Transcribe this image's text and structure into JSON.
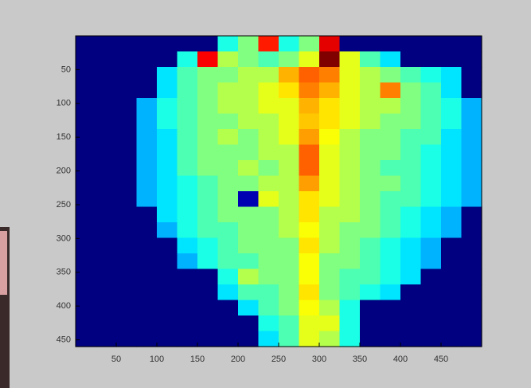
{
  "chart_data": {
    "type": "heatmap",
    "colormap": "jet",
    "clim": [
      0,
      1
    ],
    "xlim": [
      0,
      500
    ],
    "ylim": [
      0,
      460
    ],
    "yreverse": true,
    "xticks": [
      50,
      100,
      150,
      200,
      250,
      300,
      350,
      400,
      450
    ],
    "yticks": [
      50,
      100,
      150,
      200,
      250,
      300,
      350,
      400,
      450
    ],
    "z": [
      [
        0,
        0,
        0,
        0,
        0,
        0,
        0,
        0.4,
        0.5,
        0.85,
        0.4,
        0.5,
        0.9,
        0,
        0,
        0,
        0,
        0,
        0,
        0
      ],
      [
        0,
        0,
        0,
        0,
        0,
        0.4,
        0.88,
        0.55,
        0.5,
        0.45,
        0.5,
        0.6,
        1.0,
        0.6,
        0.45,
        0.35,
        0,
        0,
        0,
        0
      ],
      [
        0,
        0,
        0,
        0,
        0.35,
        0.45,
        0.5,
        0.5,
        0.55,
        0.55,
        0.7,
        0.78,
        0.75,
        0.6,
        0.55,
        0.5,
        0.45,
        0.4,
        0.35,
        0
      ],
      [
        0,
        0,
        0,
        0,
        0.35,
        0.45,
        0.5,
        0.55,
        0.55,
        0.6,
        0.65,
        0.75,
        0.7,
        0.6,
        0.55,
        0.75,
        0.5,
        0.45,
        0.35,
        0
      ],
      [
        0,
        0,
        0,
        0.3,
        0.4,
        0.45,
        0.5,
        0.55,
        0.55,
        0.6,
        0.6,
        0.7,
        0.65,
        0.6,
        0.55,
        0.55,
        0.5,
        0.45,
        0.4,
        0.3
      ],
      [
        0,
        0,
        0,
        0.3,
        0.4,
        0.45,
        0.5,
        0.5,
        0.55,
        0.55,
        0.6,
        0.68,
        0.65,
        0.6,
        0.55,
        0.5,
        0.5,
        0.45,
        0.4,
        0.3
      ],
      [
        0,
        0,
        0,
        0.3,
        0.35,
        0.45,
        0.5,
        0.55,
        0.5,
        0.55,
        0.6,
        0.72,
        0.62,
        0.55,
        0.5,
        0.5,
        0.45,
        0.45,
        0.35,
        0.3
      ],
      [
        0,
        0,
        0,
        0.3,
        0.35,
        0.45,
        0.5,
        0.5,
        0.5,
        0.55,
        0.55,
        0.78,
        0.6,
        0.55,
        0.5,
        0.5,
        0.45,
        0.4,
        0.35,
        0.3
      ],
      [
        0,
        0,
        0,
        0.3,
        0.35,
        0.45,
        0.5,
        0.5,
        0.55,
        0.5,
        0.55,
        0.78,
        0.6,
        0.55,
        0.5,
        0.45,
        0.45,
        0.4,
        0.35,
        0.3
      ],
      [
        0,
        0,
        0,
        0.3,
        0.35,
        0.4,
        0.45,
        0.5,
        0.5,
        0.55,
        0.55,
        0.72,
        0.6,
        0.55,
        0.5,
        0.5,
        0.45,
        0.4,
        0.35,
        0.3
      ],
      [
        0,
        0,
        0,
        0.3,
        0.35,
        0.4,
        0.45,
        0.5,
        0.05,
        0.6,
        0.55,
        0.65,
        0.6,
        0.55,
        0.5,
        0.45,
        0.45,
        0.4,
        0.35,
        0.3
      ],
      [
        0,
        0,
        0,
        0,
        0.35,
        0.4,
        0.45,
        0.5,
        0.5,
        0.5,
        0.55,
        0.65,
        0.55,
        0.55,
        0.5,
        0.45,
        0.4,
        0.35,
        0.3,
        0
      ],
      [
        0,
        0,
        0,
        0,
        0.3,
        0.4,
        0.45,
        0.45,
        0.5,
        0.5,
        0.55,
        0.62,
        0.55,
        0.5,
        0.5,
        0.45,
        0.4,
        0.35,
        0.3,
        0
      ],
      [
        0,
        0,
        0,
        0,
        0,
        0.35,
        0.4,
        0.45,
        0.5,
        0.5,
        0.5,
        0.65,
        0.55,
        0.5,
        0.45,
        0.4,
        0.35,
        0.3,
        0,
        0
      ],
      [
        0,
        0,
        0,
        0,
        0,
        0.3,
        0.4,
        0.45,
        0.45,
        0.5,
        0.5,
        0.62,
        0.5,
        0.5,
        0.45,
        0.4,
        0.35,
        0.3,
        0,
        0
      ],
      [
        0,
        0,
        0,
        0,
        0,
        0,
        0,
        0.4,
        0.55,
        0.5,
        0.5,
        0.62,
        0.5,
        0.45,
        0.45,
        0.4,
        0.35,
        0,
        0,
        0
      ],
      [
        0,
        0,
        0,
        0,
        0,
        0,
        0,
        0.35,
        0.45,
        0.45,
        0.5,
        0.65,
        0.5,
        0.45,
        0.4,
        0.35,
        0,
        0,
        0,
        0
      ],
      [
        0,
        0,
        0,
        0,
        0,
        0,
        0,
        0,
        0.35,
        0.45,
        0.5,
        0.62,
        0.55,
        0.4,
        0,
        0,
        0,
        0,
        0,
        0
      ],
      [
        0,
        0,
        0,
        0,
        0,
        0,
        0,
        0,
        0,
        0.4,
        0.45,
        0.6,
        0.6,
        0.4,
        0,
        0,
        0,
        0,
        0,
        0
      ],
      [
        0,
        0,
        0,
        0,
        0,
        0,
        0,
        0,
        0,
        0.35,
        0.45,
        0.6,
        0.55,
        0.4,
        0,
        0,
        0,
        0,
        0,
        0
      ]
    ]
  }
}
